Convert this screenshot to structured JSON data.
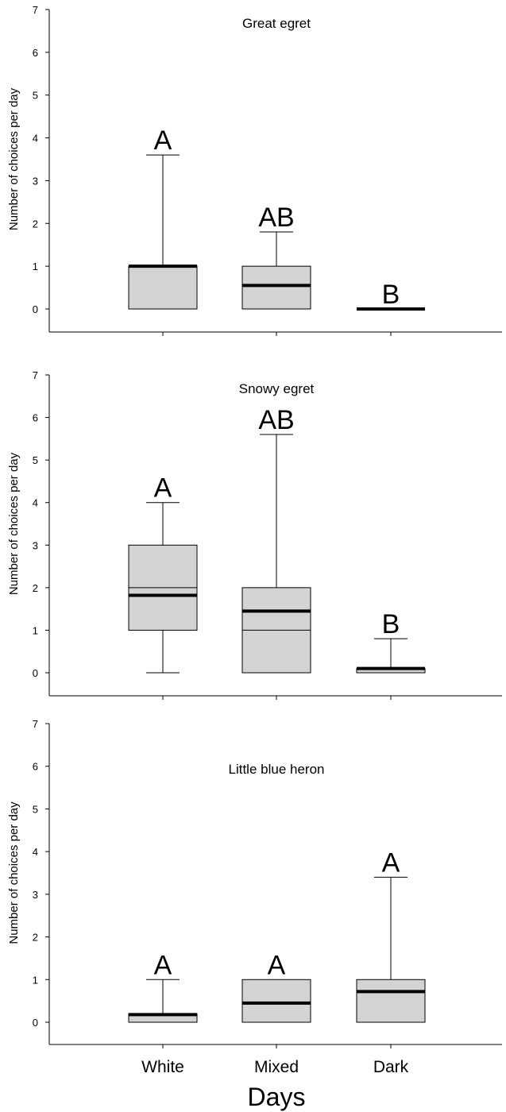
{
  "chart_data": {
    "type": "box",
    "xlabel": "Days",
    "categories": [
      "White",
      "Mixed",
      "Dark"
    ],
    "ylim": [
      0,
      7
    ],
    "yticks": [
      0,
      1,
      2,
      3,
      4,
      5,
      6,
      7
    ],
    "box_fill": "#d3d3d3",
    "panels": [
      {
        "title": "Great egret",
        "ylabel": "Number of choices per day",
        "boxes": [
          {
            "category": "White",
            "min": 0,
            "q1": 0,
            "median": 1.0,
            "q3": 1.0,
            "max": 3.6,
            "mean": 1.0,
            "letter": "A"
          },
          {
            "category": "Mixed",
            "min": 0,
            "q1": 0,
            "median": 0,
            "q3": 1.0,
            "max": 1.8,
            "mean": 0.55,
            "letter": "AB"
          },
          {
            "category": "Dark",
            "min": 0,
            "q1": 0,
            "median": 0,
            "q3": 0,
            "max": 0,
            "mean": 0,
            "letter": "B"
          }
        ]
      },
      {
        "title": "Snowy egret",
        "ylabel": "Number of choices per day",
        "boxes": [
          {
            "category": "White",
            "min": 0,
            "q1": 1.0,
            "median": 2.0,
            "q3": 3.0,
            "max": 4.0,
            "mean": 1.82,
            "letter": "A"
          },
          {
            "category": "Mixed",
            "min": 0,
            "q1": 0,
            "median": 1.0,
            "q3": 2.0,
            "max": 5.6,
            "mean": 1.45,
            "letter": "AB"
          },
          {
            "category": "Dark",
            "min": 0,
            "q1": 0,
            "median": 0,
            "q3": 0.1,
            "max": 0.8,
            "mean": 0.1,
            "letter": "B"
          }
        ]
      },
      {
        "title": "Little blue heron",
        "ylabel": "Number of choices per day",
        "boxes": [
          {
            "category": "White",
            "min": 0,
            "q1": 0,
            "median": 0.2,
            "q3": 0.2,
            "max": 1.0,
            "mean": 0.18,
            "letter": "A"
          },
          {
            "category": "Mixed",
            "min": 0,
            "q1": 0,
            "median": 0,
            "q3": 1.0,
            "max": 1.0,
            "mean": 0.45,
            "letter": "A"
          },
          {
            "category": "Dark",
            "min": 0,
            "q1": 0,
            "median": 0,
            "q3": 1.0,
            "max": 3.4,
            "mean": 0.72,
            "letter": "A"
          }
        ]
      }
    ]
  }
}
